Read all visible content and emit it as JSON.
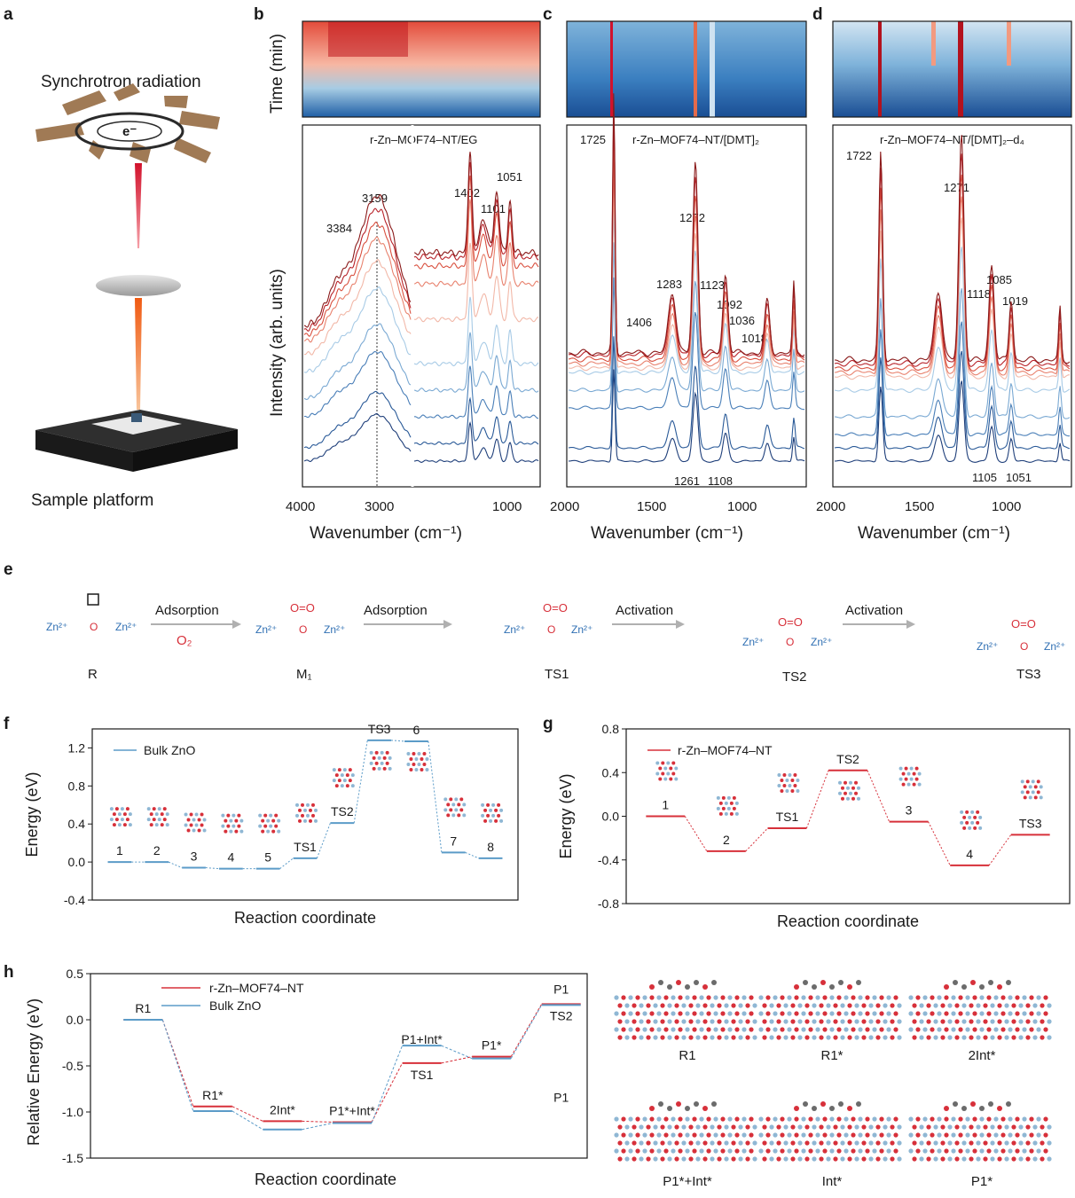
{
  "figure": {
    "panel_letters": [
      "a",
      "b",
      "c",
      "d",
      "e",
      "f",
      "g",
      "h"
    ]
  },
  "panel_a": {
    "top_label": "Synchrotron radiation",
    "electron_label": "e⁻",
    "bottom_label": "Sample platform"
  },
  "panel_b": {
    "title": "r-Zn–MOF74–NT/EG",
    "time_label": "Time (min)",
    "ylabel": "Intensity (arb. units)",
    "xlabel": "Wavenumber (cm⁻¹)",
    "x_ticks": [
      "4000",
      "3000",
      "1000"
    ],
    "peaks": [
      "3384",
      "3159",
      "1402",
      "1101",
      "1051"
    ]
  },
  "panel_c": {
    "title": "r-Zn–MOF74–NT/[DMT]₂",
    "xlabel": "Wavenumber (cm⁻¹)",
    "x_ticks": [
      "2000",
      "1500",
      "1000"
    ],
    "peaks": [
      "1725",
      "1272",
      "1283",
      "1123",
      "1406",
      "1092",
      "1036",
      "1018",
      "1261",
      "1108"
    ]
  },
  "panel_d": {
    "title": "r-Zn–MOF74–NT/[DMT]₂–d₄",
    "xlabel": "Wavenumber (cm⁻¹)",
    "x_ticks": [
      "2000",
      "1500",
      "1000"
    ],
    "peaks": [
      "1722",
      "1271",
      "1085",
      "1118",
      "1019",
      "1105",
      "1051"
    ]
  },
  "panel_e": {
    "steps": [
      "R",
      "M₁",
      "TS1",
      "TS2",
      "TS3"
    ],
    "arrows": [
      {
        "label": "Adsorption",
        "sub": "O₂"
      },
      {
        "label": "Adsorption",
        "sub": ""
      },
      {
        "label": "Activation",
        "sub": ""
      },
      {
        "label": "Activation",
        "sub": ""
      }
    ]
  },
  "chart_data": [
    {
      "id": "f",
      "type": "line",
      "legend": "Bulk ZnO",
      "color": "#5b9bc8",
      "ylabel": "Energy (eV)",
      "xlabel": "Reaction coordinate",
      "ylim": [
        -0.4,
        1.4
      ],
      "yticks": [
        -0.4,
        0.0,
        0.4,
        0.8,
        1.2
      ],
      "states": [
        {
          "label": "1",
          "value": 0.0
        },
        {
          "label": "2",
          "value": 0.0
        },
        {
          "label": "3",
          "value": -0.06
        },
        {
          "label": "4",
          "value": -0.07
        },
        {
          "label": "5",
          "value": -0.07
        },
        {
          "label": "TS1",
          "value": 0.04
        },
        {
          "label": "TS2",
          "value": 0.41
        },
        {
          "label": "TS3",
          "value": 1.28
        },
        {
          "label": "6",
          "value": 1.27
        },
        {
          "label": "7",
          "value": 0.1
        },
        {
          "label": "8",
          "value": 0.04
        }
      ]
    },
    {
      "id": "g",
      "type": "line",
      "legend": "r-Zn–MOF74–NT",
      "color": "#d7303a",
      "ylabel": "Energy (eV)",
      "xlabel": "Reaction coordinate",
      "ylim": [
        -0.8,
        0.8
      ],
      "yticks": [
        -0.8,
        -0.4,
        0.0,
        0.4,
        0.8
      ],
      "states": [
        {
          "label": "1",
          "value": 0.0
        },
        {
          "label": "2",
          "value": -0.32
        },
        {
          "label": "TS1",
          "value": -0.11
        },
        {
          "label": "TS2",
          "value": 0.42
        },
        {
          "label": "3",
          "value": -0.05
        },
        {
          "label": "4",
          "value": -0.45
        },
        {
          "label": "TS3",
          "value": -0.17
        }
      ]
    },
    {
      "id": "h",
      "type": "line",
      "ylabel": "Relative Energy (eV)",
      "xlabel": "Reaction coordinate",
      "ylim": [
        -1.5,
        0.5
      ],
      "yticks": [
        -1.5,
        -1.0,
        -0.5,
        0.0,
        0.5
      ],
      "categories": [
        "R1",
        "R1*",
        "2Int*",
        "P1*+Int*",
        "TS1 / P1+Int*",
        "P1*",
        "TS2 / P1"
      ],
      "series": [
        {
          "name": "r-Zn–MOF74–NT",
          "color": "#d7303a",
          "values": [
            0.0,
            -0.94,
            -1.1,
            -1.11,
            -0.47,
            -0.4,
            0.17
          ]
        },
        {
          "name": "Bulk ZnO",
          "color": "#5b9bc8",
          "values": [
            0.0,
            -0.99,
            -1.19,
            -1.12,
            -0.28,
            -0.42,
            0.16
          ]
        }
      ],
      "level_labels": [
        "R1",
        "R1*",
        "2Int*",
        "P1*+Int*",
        "TS1",
        "P1+Int*",
        "P1*",
        "P1",
        "TS2",
        "P1"
      ]
    }
  ],
  "structures_h": [
    "R1",
    "R1*",
    "2Int*",
    "P1*+Int*",
    "Int*",
    "P1*"
  ]
}
